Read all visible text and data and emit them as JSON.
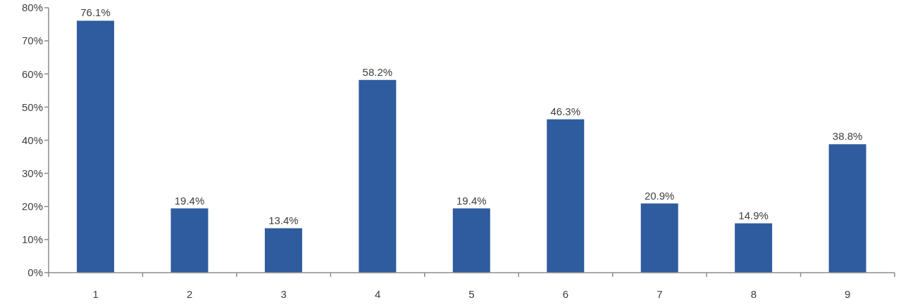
{
  "chart_data": {
    "type": "bar",
    "categories": [
      "1",
      "2",
      "3",
      "4",
      "5",
      "6",
      "7",
      "8",
      "9"
    ],
    "values": [
      76.1,
      19.4,
      13.4,
      58.2,
      19.4,
      46.3,
      20.9,
      14.9,
      38.8
    ],
    "value_labels": [
      "76.1%",
      "19.4%",
      "13.4%",
      "58.2%",
      "19.4%",
      "46.3%",
      "20.9%",
      "14.9%",
      "38.8%"
    ],
    "color": "#2e5c9e",
    "ylim": [
      0,
      80
    ],
    "yticks": [
      {
        "value": 0,
        "label": "0%"
      },
      {
        "value": 10,
        "label": "10%"
      },
      {
        "value": 20,
        "label": "20%"
      },
      {
        "value": 30,
        "label": "30%"
      },
      {
        "value": 40,
        "label": "40%"
      },
      {
        "value": 50,
        "label": "50%"
      },
      {
        "value": 60,
        "label": "60%"
      },
      {
        "value": 70,
        "label": "70%"
      },
      {
        "value": 80,
        "label": "80%"
      }
    ]
  }
}
